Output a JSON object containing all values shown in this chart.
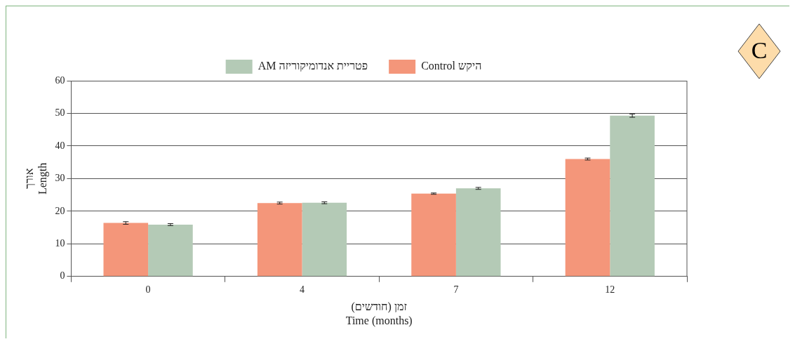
{
  "chart_data": {
    "type": "bar",
    "categories": [
      "0",
      "4",
      "7",
      "12"
    ],
    "series": [
      {
        "name": "Control היקש",
        "color": "#f4967a",
        "values": [
          16.4,
          22.5,
          25.4,
          36.0
        ],
        "errors": [
          0.4,
          0.3,
          0.2,
          0.3
        ]
      },
      {
        "name": "AM פטריית אנדומיקוריזה",
        "color": "#b4cab6",
        "values": [
          15.9,
          22.6,
          27.0,
          49.3
        ],
        "errors": [
          0.3,
          0.3,
          0.3,
          0.5
        ]
      }
    ],
    "xlabel": "זמן (חודשים)\nTime (months)",
    "ylabel": "אורך\nLength",
    "ylim": [
      0,
      60
    ],
    "yticks": [
      0,
      10,
      20,
      30,
      40,
      50,
      60
    ],
    "grid": "y",
    "legend": "top",
    "annotations": [
      "C"
    ]
  }
}
